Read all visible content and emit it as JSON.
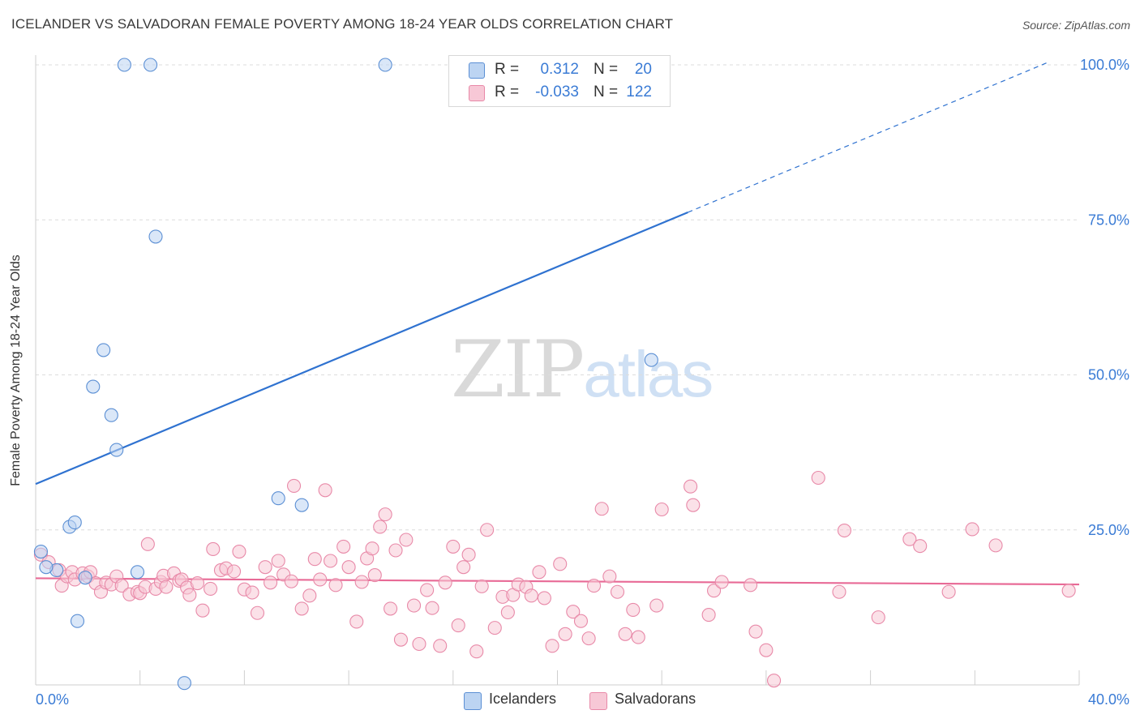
{
  "title": "ICELANDER VS SALVADORAN FEMALE POVERTY AMONG 18-24 YEAR OLDS CORRELATION CHART",
  "source": "Source: ZipAtlas.com",
  "watermark": {
    "zip": "ZIP",
    "atlas": "atlas"
  },
  "legend_top": [
    {
      "r_label": "R =",
      "r_value": "0.312",
      "n_label": "N =",
      "n_value": "20"
    },
    {
      "r_label": "R =",
      "r_value": "-0.033",
      "n_label": "N =",
      "n_value": "122"
    }
  ],
  "colors": {
    "icelanders_fill": "#bcd4f2",
    "icelanders_stroke": "#5b8fd4",
    "icelanders_line": "#2f72d0",
    "salvadorans_fill": "#f7c8d6",
    "salvadorans_stroke": "#e889a8",
    "salvadorans_line": "#e86a96",
    "tick_label": "#3a7bd5",
    "grid": "#dcdcdc"
  },
  "chart_data": {
    "type": "scatter",
    "ylabel": "Female Poverty Among 18-24 Year Olds",
    "xlim": [
      0,
      40
    ],
    "ylim": [
      0,
      100
    ],
    "x_tick_labels": [
      {
        "value": 0,
        "label": "0.0%"
      },
      {
        "value": 40,
        "label": "40.0%"
      }
    ],
    "y_tick_labels": [
      {
        "value": 25,
        "label": "25.0%"
      },
      {
        "value": 50,
        "label": "50.0%"
      },
      {
        "value": 75,
        "label": "75.0%"
      },
      {
        "value": 100,
        "label": "100.0%"
      }
    ],
    "grid": true,
    "series": [
      {
        "name": "Icelanders",
        "trend": {
          "x0": 0,
          "y0": 32.4,
          "x1": 40,
          "y1": 102.5,
          "solid_until_x": 25
        },
        "points": [
          [
            0.2,
            21.5
          ],
          [
            0.8,
            18.5
          ],
          [
            0.4,
            19.0
          ],
          [
            1.3,
            25.5
          ],
          [
            1.5,
            26.2
          ],
          [
            1.9,
            17.3
          ],
          [
            1.6,
            10.3
          ],
          [
            2.2,
            48.1
          ],
          [
            2.6,
            54.0
          ],
          [
            2.9,
            43.5
          ],
          [
            3.1,
            37.9
          ],
          [
            3.4,
            100.0
          ],
          [
            3.9,
            18.2
          ],
          [
            4.4,
            100.0
          ],
          [
            4.6,
            72.3
          ],
          [
            5.7,
            0.3
          ],
          [
            9.3,
            30.1
          ],
          [
            10.2,
            29.0
          ],
          [
            13.4,
            100.0
          ],
          [
            23.6,
            52.4
          ]
        ]
      },
      {
        "name": "Salvadorans",
        "trend": {
          "x0": 0,
          "y0": 17.2,
          "x1": 40,
          "y1": 16.2,
          "solid_until_x": 40
        },
        "points": [
          [
            0.2,
            21.0
          ],
          [
            0.5,
            19.8
          ],
          [
            0.9,
            18.5
          ],
          [
            1.0,
            16.0
          ],
          [
            1.2,
            17.5
          ],
          [
            1.4,
            18.2
          ],
          [
            1.5,
            17.0
          ],
          [
            1.8,
            18.0
          ],
          [
            2.0,
            17.5
          ],
          [
            2.1,
            18.2
          ],
          [
            2.3,
            16.4
          ],
          [
            2.5,
            15.0
          ],
          [
            2.7,
            16.5
          ],
          [
            2.9,
            16.2
          ],
          [
            3.1,
            17.5
          ],
          [
            3.3,
            16.0
          ],
          [
            3.6,
            14.6
          ],
          [
            3.9,
            15.0
          ],
          [
            4.0,
            14.8
          ],
          [
            4.2,
            15.8
          ],
          [
            4.3,
            22.7
          ],
          [
            4.6,
            15.5
          ],
          [
            4.8,
            16.6
          ],
          [
            4.9,
            17.6
          ],
          [
            5.0,
            15.8
          ],
          [
            5.3,
            18.0
          ],
          [
            5.5,
            16.8
          ],
          [
            5.6,
            17.0
          ],
          [
            5.8,
            15.7
          ],
          [
            5.9,
            14.5
          ],
          [
            6.2,
            16.4
          ],
          [
            6.4,
            12.0
          ],
          [
            6.7,
            15.5
          ],
          [
            6.8,
            21.9
          ],
          [
            7.1,
            18.5
          ],
          [
            7.3,
            18.8
          ],
          [
            7.6,
            18.3
          ],
          [
            7.8,
            21.5
          ],
          [
            8.0,
            15.4
          ],
          [
            8.3,
            14.9
          ],
          [
            8.5,
            11.6
          ],
          [
            8.8,
            19.0
          ],
          [
            9.0,
            16.5
          ],
          [
            9.3,
            20.0
          ],
          [
            9.5,
            17.8
          ],
          [
            9.8,
            16.7
          ],
          [
            9.9,
            32.1
          ],
          [
            10.2,
            12.3
          ],
          [
            10.5,
            14.4
          ],
          [
            10.7,
            20.3
          ],
          [
            10.9,
            17.0
          ],
          [
            11.1,
            31.4
          ],
          [
            11.3,
            20.0
          ],
          [
            11.5,
            16.1
          ],
          [
            11.8,
            22.3
          ],
          [
            12.0,
            19.0
          ],
          [
            12.3,
            10.2
          ],
          [
            12.5,
            16.6
          ],
          [
            12.7,
            20.4
          ],
          [
            12.9,
            22.0
          ],
          [
            13.0,
            17.7
          ],
          [
            13.2,
            25.5
          ],
          [
            13.4,
            27.5
          ],
          [
            13.6,
            12.3
          ],
          [
            13.8,
            21.7
          ],
          [
            14.0,
            7.3
          ],
          [
            14.2,
            23.4
          ],
          [
            14.5,
            12.8
          ],
          [
            14.7,
            6.6
          ],
          [
            15.0,
            15.3
          ],
          [
            15.2,
            12.4
          ],
          [
            15.5,
            6.3
          ],
          [
            15.7,
            16.5
          ],
          [
            16.0,
            22.3
          ],
          [
            16.2,
            9.6
          ],
          [
            16.4,
            19.0
          ],
          [
            16.6,
            21.0
          ],
          [
            16.9,
            5.4
          ],
          [
            17.1,
            15.9
          ],
          [
            17.3,
            25.0
          ],
          [
            17.6,
            9.2
          ],
          [
            17.9,
            14.2
          ],
          [
            18.1,
            11.7
          ],
          [
            18.3,
            14.5
          ],
          [
            18.5,
            16.2
          ],
          [
            18.8,
            15.8
          ],
          [
            19.0,
            14.4
          ],
          [
            19.3,
            18.2
          ],
          [
            19.5,
            14.0
          ],
          [
            19.8,
            6.3
          ],
          [
            20.1,
            19.5
          ],
          [
            20.3,
            8.2
          ],
          [
            20.6,
            11.8
          ],
          [
            20.9,
            10.3
          ],
          [
            21.2,
            7.5
          ],
          [
            21.4,
            16.0
          ],
          [
            21.7,
            28.4
          ],
          [
            22.0,
            17.5
          ],
          [
            22.3,
            15.0
          ],
          [
            22.6,
            8.2
          ],
          [
            22.9,
            12.1
          ],
          [
            23.1,
            7.7
          ],
          [
            23.8,
            12.8
          ],
          [
            24.0,
            28.3
          ],
          [
            25.1,
            32.0
          ],
          [
            25.2,
            29.0
          ],
          [
            25.8,
            11.3
          ],
          [
            26.0,
            15.2
          ],
          [
            26.3,
            16.6
          ],
          [
            27.4,
            16.1
          ],
          [
            27.6,
            8.6
          ],
          [
            28.0,
            5.6
          ],
          [
            28.3,
            0.7
          ],
          [
            30.0,
            33.4
          ],
          [
            30.8,
            15.0
          ],
          [
            31.0,
            24.9
          ],
          [
            32.3,
            10.9
          ],
          [
            33.5,
            23.5
          ],
          [
            33.9,
            22.4
          ],
          [
            35.0,
            15.0
          ],
          [
            35.9,
            25.1
          ],
          [
            36.8,
            22.5
          ],
          [
            39.6,
            15.2
          ]
        ]
      }
    ]
  }
}
